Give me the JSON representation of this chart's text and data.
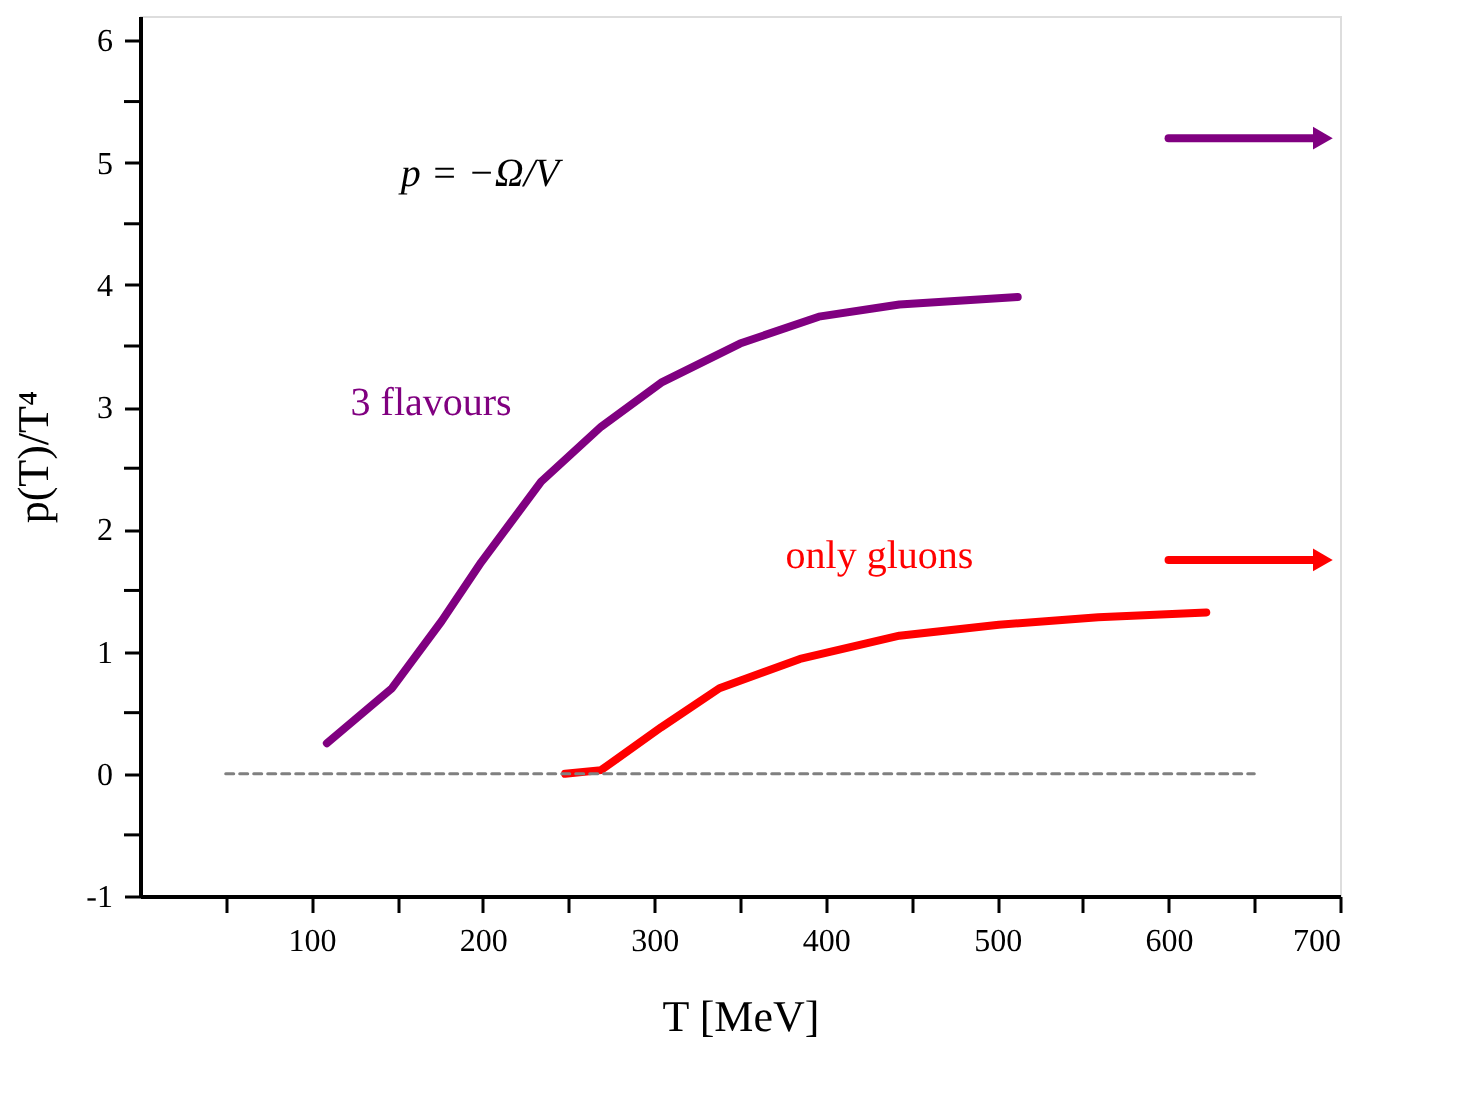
{
  "chart_data": {
    "type": "line",
    "xlabel": "T [MeV]",
    "ylabel": "p(T)/T⁴",
    "annotations": [
      "p = −Ω/V"
    ],
    "xlim": [
      0,
      700
    ],
    "ylim": [
      -1,
      6.2
    ],
    "xticks": [
      {
        "value": 50,
        "label": null
      },
      100,
      {
        "value": 150,
        "label": null
      },
      200,
      {
        "value": 250,
        "label": null
      },
      300,
      {
        "value": 350,
        "label": null
      },
      400,
      {
        "value": 450,
        "label": null
      },
      500,
      {
        "value": 550,
        "label": null
      },
      600,
      {
        "value": 650,
        "label": null
      },
      700
    ],
    "yticks": [
      -1,
      {
        "value": -0.5,
        "label": null
      },
      0,
      {
        "value": 0.5,
        "label": null
      },
      1,
      {
        "value": 1.5,
        "label": null
      },
      2,
      {
        "value": 2.5,
        "label": null
      },
      3,
      {
        "value": 3.5,
        "label": null
      },
      4,
      {
        "value": 4.5,
        "label": null
      },
      5,
      {
        "value": 5.5,
        "label": null
      },
      6
    ],
    "grid": false,
    "series": [
      {
        "name": "3 flavours",
        "color": "#800080",
        "x": [
          109,
          147,
          176,
          199,
          234,
          269,
          304,
          350,
          396,
          443,
          512
        ],
        "values": [
          0.25,
          0.7,
          1.25,
          1.73,
          2.39,
          2.84,
          3.2,
          3.52,
          3.74,
          3.84,
          3.9
        ]
      },
      {
        "name": "only gluons",
        "color": "#ff0000",
        "x": [
          248,
          269,
          304,
          338,
          385,
          443,
          501,
          559,
          622
        ],
        "values": [
          0,
          0.03,
          0.38,
          0.7,
          0.94,
          1.13,
          1.22,
          1.28,
          1.32
        ]
      },
      {
        "color": "#808080",
        "line_style": "dashed",
        "x": [
          50,
          650
        ],
        "values": [
          0,
          0
        ]
      },
      {
        "color": "#800080",
        "marker": "triangle",
        "x": [
          600,
          690
        ],
        "values": [
          5.2,
          5.2
        ]
      },
      {
        "color": "#ff0000",
        "marker": "triangle",
        "x": [
          600,
          690
        ],
        "values": [
          1.75,
          1.75
        ]
      }
    ]
  }
}
